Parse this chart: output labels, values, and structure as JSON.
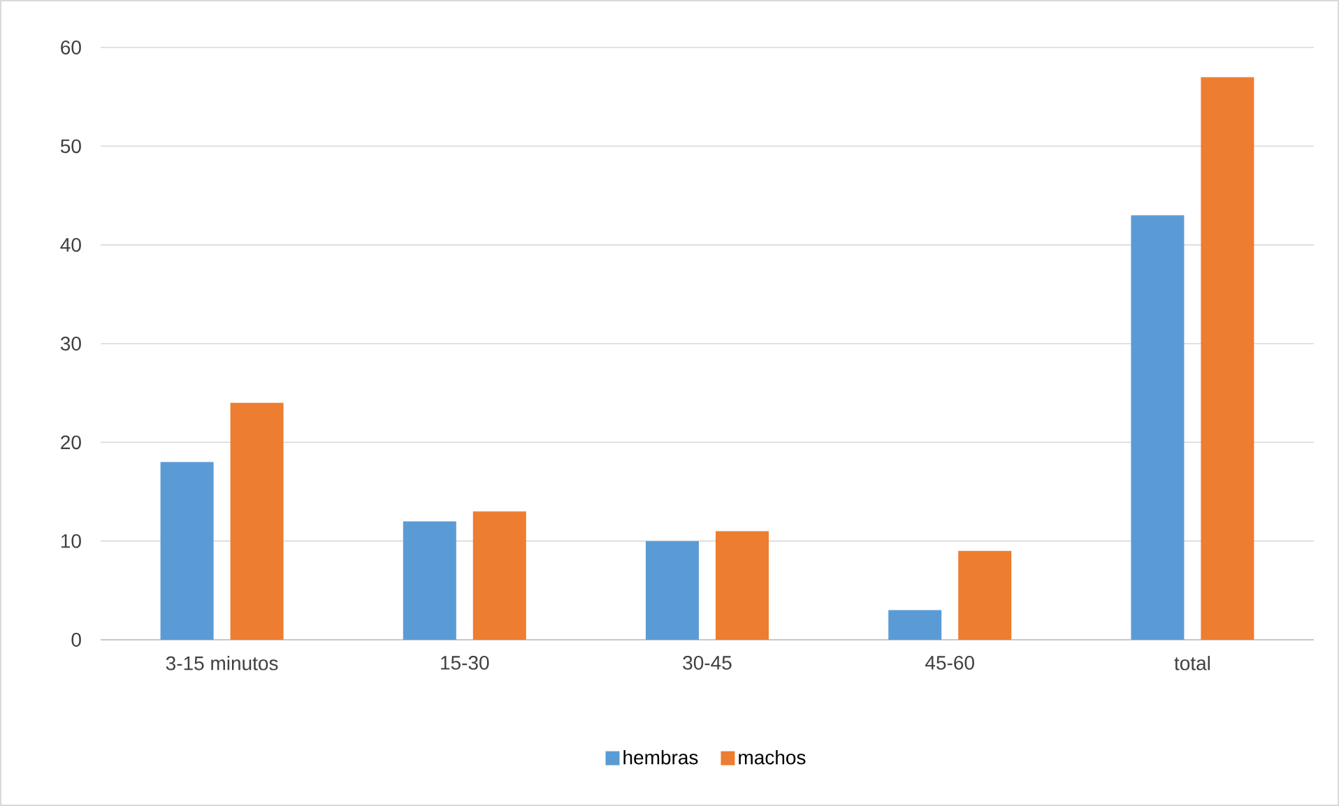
{
  "chart_data": {
    "type": "bar",
    "categories": [
      "3-15 minutos",
      "15-30",
      "30-45",
      "45-60",
      "total"
    ],
    "series": [
      {
        "name": "hembras",
        "color": "#5b9bd5",
        "values": [
          18,
          12,
          10,
          3,
          43
        ]
      },
      {
        "name": "machos",
        "color": "#ed7d31",
        "values": [
          24,
          13,
          11,
          9,
          57
        ]
      }
    ],
    "ylim": [
      0,
      60
    ],
    "yticks": [
      0,
      10,
      20,
      30,
      40,
      50,
      60
    ],
    "grid": "y",
    "legend": "bottom"
  }
}
